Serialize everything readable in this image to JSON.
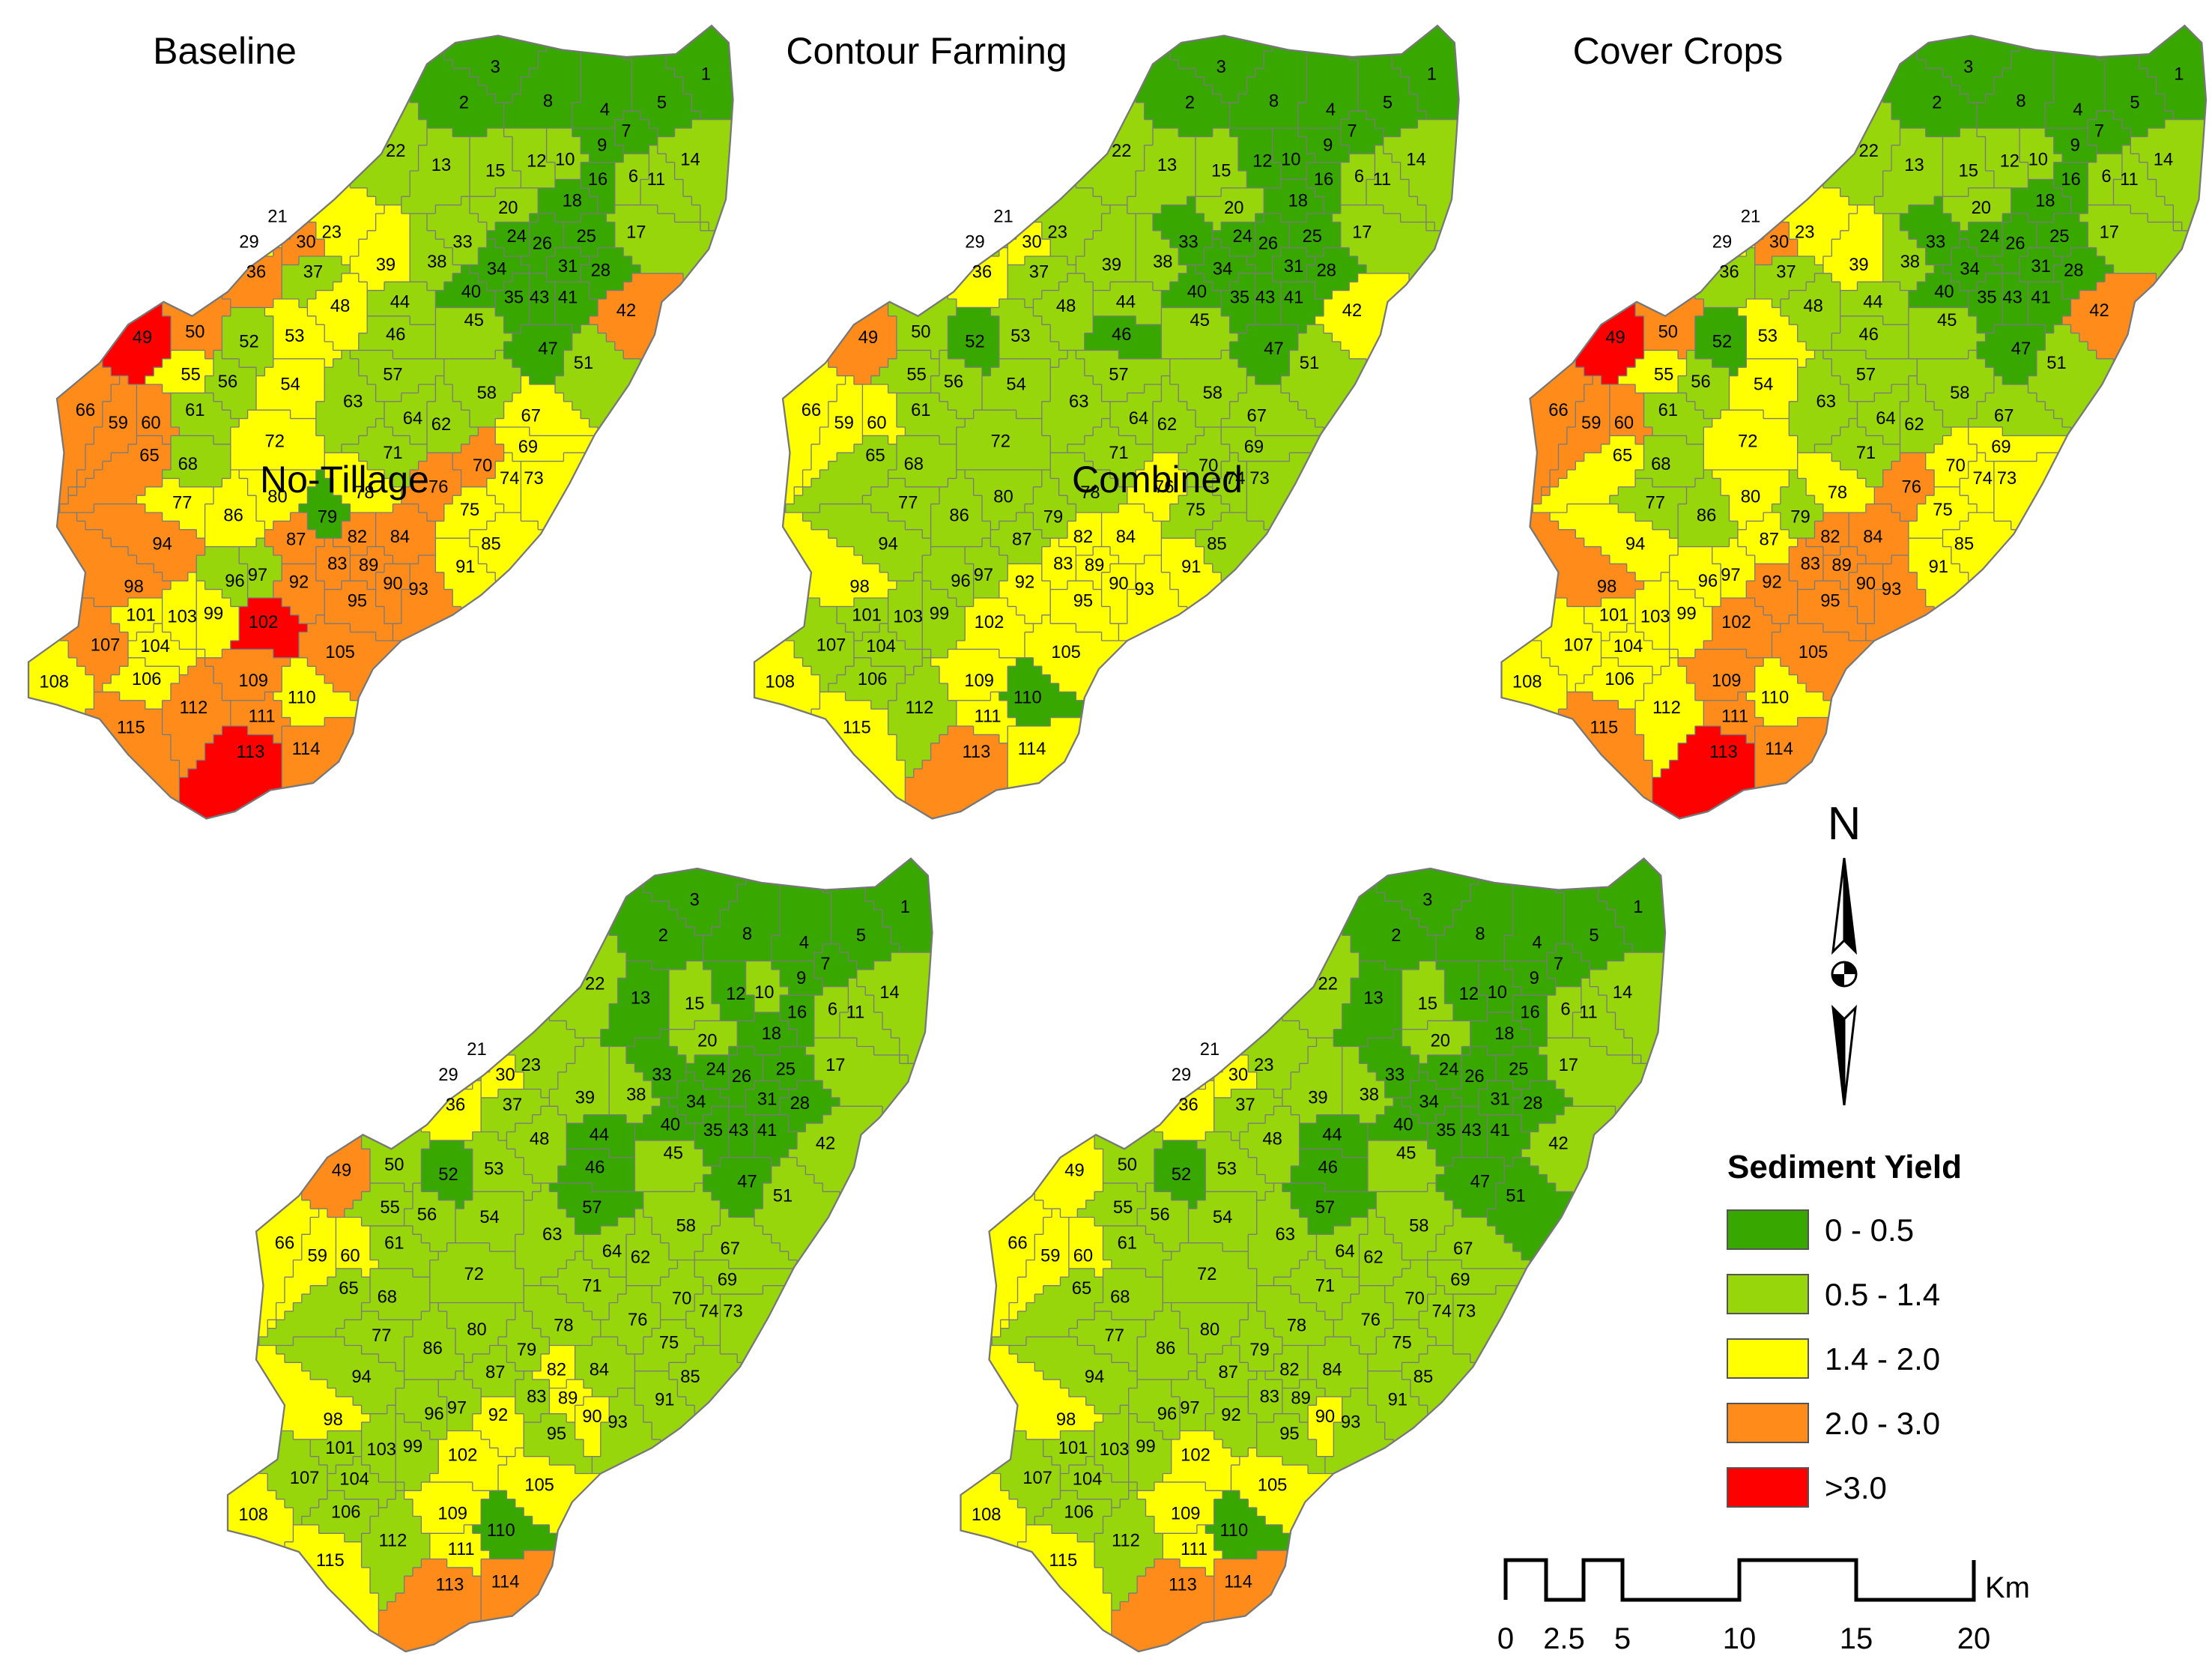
{
  "maps": [
    {
      "id": "baseline",
      "title": "Baseline",
      "zones": {
        "red": [
          "49",
          "102",
          "113"
        ],
        "orange": [
          "36",
          "30",
          "42",
          "50",
          "66",
          "59",
          "60",
          "65",
          "76",
          "70",
          "94",
          "98",
          "87",
          "82",
          "84",
          "83",
          "89",
          "90",
          "92",
          "95",
          "93",
          "107",
          "112",
          "115",
          "109",
          "105",
          "111",
          "114"
        ],
        "yellow": [
          "21",
          "29",
          "23",
          "39",
          "48",
          "53",
          "54",
          "55",
          "72",
          "77",
          "80",
          "86",
          "78",
          "69",
          "67",
          "75",
          "74",
          "73",
          "85",
          "91",
          "104",
          "103",
          "99",
          "101",
          "106",
          "108",
          "110"
        ],
        "light": [
          "22",
          "13",
          "15",
          "12",
          "20",
          "17",
          "14",
          "11",
          "6",
          "10",
          "37",
          "38",
          "33",
          "44",
          "46",
          "45",
          "52",
          "56",
          "57",
          "63",
          "58",
          "64",
          "62",
          "71",
          "61",
          "68",
          "51",
          "97",
          "96"
        ],
        "dark": [
          "3",
          "2",
          "8",
          "1",
          "5",
          "4",
          "7",
          "9",
          "16",
          "18",
          "24",
          "26",
          "25",
          "34",
          "31",
          "28",
          "40",
          "35",
          "43",
          "41",
          "47",
          "79"
        ]
      }
    },
    {
      "id": "contour",
      "title": "Contour Farming",
      "zones": {
        "red": [],
        "orange": [
          "49",
          "113"
        ],
        "yellow": [
          "30",
          "36",
          "42",
          "66",
          "59",
          "60",
          "76",
          "82",
          "84",
          "89",
          "92",
          "98",
          "102",
          "105",
          "109",
          "111",
          "114",
          "115",
          "108",
          "95",
          "93",
          "83",
          "90",
          "91"
        ],
        "light": [],
        "dark": [
          "3",
          "2",
          "8",
          "1",
          "5",
          "4",
          "7",
          "9",
          "16",
          "18",
          "12",
          "10",
          "24",
          "26",
          "25",
          "33",
          "34",
          "31",
          "28",
          "35",
          "43",
          "41",
          "46",
          "47",
          "52",
          "110",
          "40"
        ]
      }
    },
    {
      "id": "cover",
      "title": "Cover Crops",
      "zones": {
        "red": [
          "49",
          "113"
        ],
        "orange": [
          "30",
          "42",
          "50",
          "66",
          "59",
          "60",
          "76",
          "82",
          "84",
          "83",
          "89",
          "90",
          "92",
          "95",
          "93",
          "98",
          "102",
          "105",
          "109",
          "111",
          "114",
          "115"
        ],
        "yellow": [
          "21",
          "29",
          "23",
          "39",
          "53",
          "55",
          "72",
          "70",
          "69",
          "74",
          "73",
          "75",
          "85",
          "91",
          "94",
          "96",
          "97",
          "101",
          "103",
          "99",
          "104",
          "107",
          "106",
          "108",
          "112",
          "110",
          "80",
          "87",
          "78",
          "65",
          "54"
        ],
        "light": [],
        "dark": [
          "3",
          "2",
          "8",
          "1",
          "5",
          "4",
          "7",
          "9",
          "16",
          "18",
          "24",
          "26",
          "25",
          "33",
          "34",
          "31",
          "28",
          "40",
          "35",
          "43",
          "41",
          "47",
          "52"
        ]
      }
    },
    {
      "id": "notill",
      "title": "No-Tillage",
      "zones": {
        "red": [],
        "orange": [
          "49",
          "113",
          "114"
        ],
        "yellow": [
          "29",
          "30",
          "36",
          "66",
          "59",
          "60",
          "98",
          "82",
          "89",
          "92",
          "90",
          "102",
          "105",
          "109",
          "111",
          "115",
          "108"
        ],
        "light": [],
        "dark": [
          "3",
          "2",
          "8",
          "1",
          "5",
          "4",
          "7",
          "9",
          "16",
          "18",
          "12",
          "13",
          "24",
          "26",
          "25",
          "33",
          "34",
          "31",
          "28",
          "35",
          "43",
          "41",
          "44",
          "46",
          "47",
          "52",
          "57",
          "110",
          "40"
        ]
      }
    },
    {
      "id": "combined",
      "title": "Combined",
      "zones": {
        "red": [],
        "orange": [
          "113",
          "114"
        ],
        "yellow": [
          "49",
          "29",
          "30",
          "36",
          "66",
          "59",
          "60",
          "98",
          "90",
          "102",
          "105",
          "109",
          "111",
          "115",
          "108"
        ],
        "light": [],
        "dark": [
          "3",
          "2",
          "8",
          "1",
          "5",
          "4",
          "7",
          "9",
          "16",
          "18",
          "12",
          "10",
          "13",
          "24",
          "26",
          "25",
          "33",
          "34",
          "31",
          "28",
          "35",
          "43",
          "41",
          "44",
          "46",
          "47",
          "52",
          "57",
          "51",
          "40",
          "110"
        ]
      }
    }
  ],
  "legend": {
    "title": "Sediment Yield",
    "classes": [
      {
        "key": "dark",
        "label": "0 - 0.5",
        "color": "#38a800"
      },
      {
        "key": "light",
        "label": "0.5 - 1.4",
        "color": "#98d60c"
      },
      {
        "key": "yellow",
        "label": "1.4 - 2.0",
        "color": "#ffff00"
      },
      {
        "key": "orange",
        "label": "2.0 - 3.0",
        "color": "#ff8c1a"
      },
      {
        "key": "red",
        "label": ">3.0",
        "color": "#ff0000"
      }
    ]
  },
  "north": {
    "label": "N"
  },
  "scale": {
    "ticks": [
      "0",
      "2.5",
      "5",
      "10",
      "15",
      "20"
    ],
    "unit": "Km"
  }
}
